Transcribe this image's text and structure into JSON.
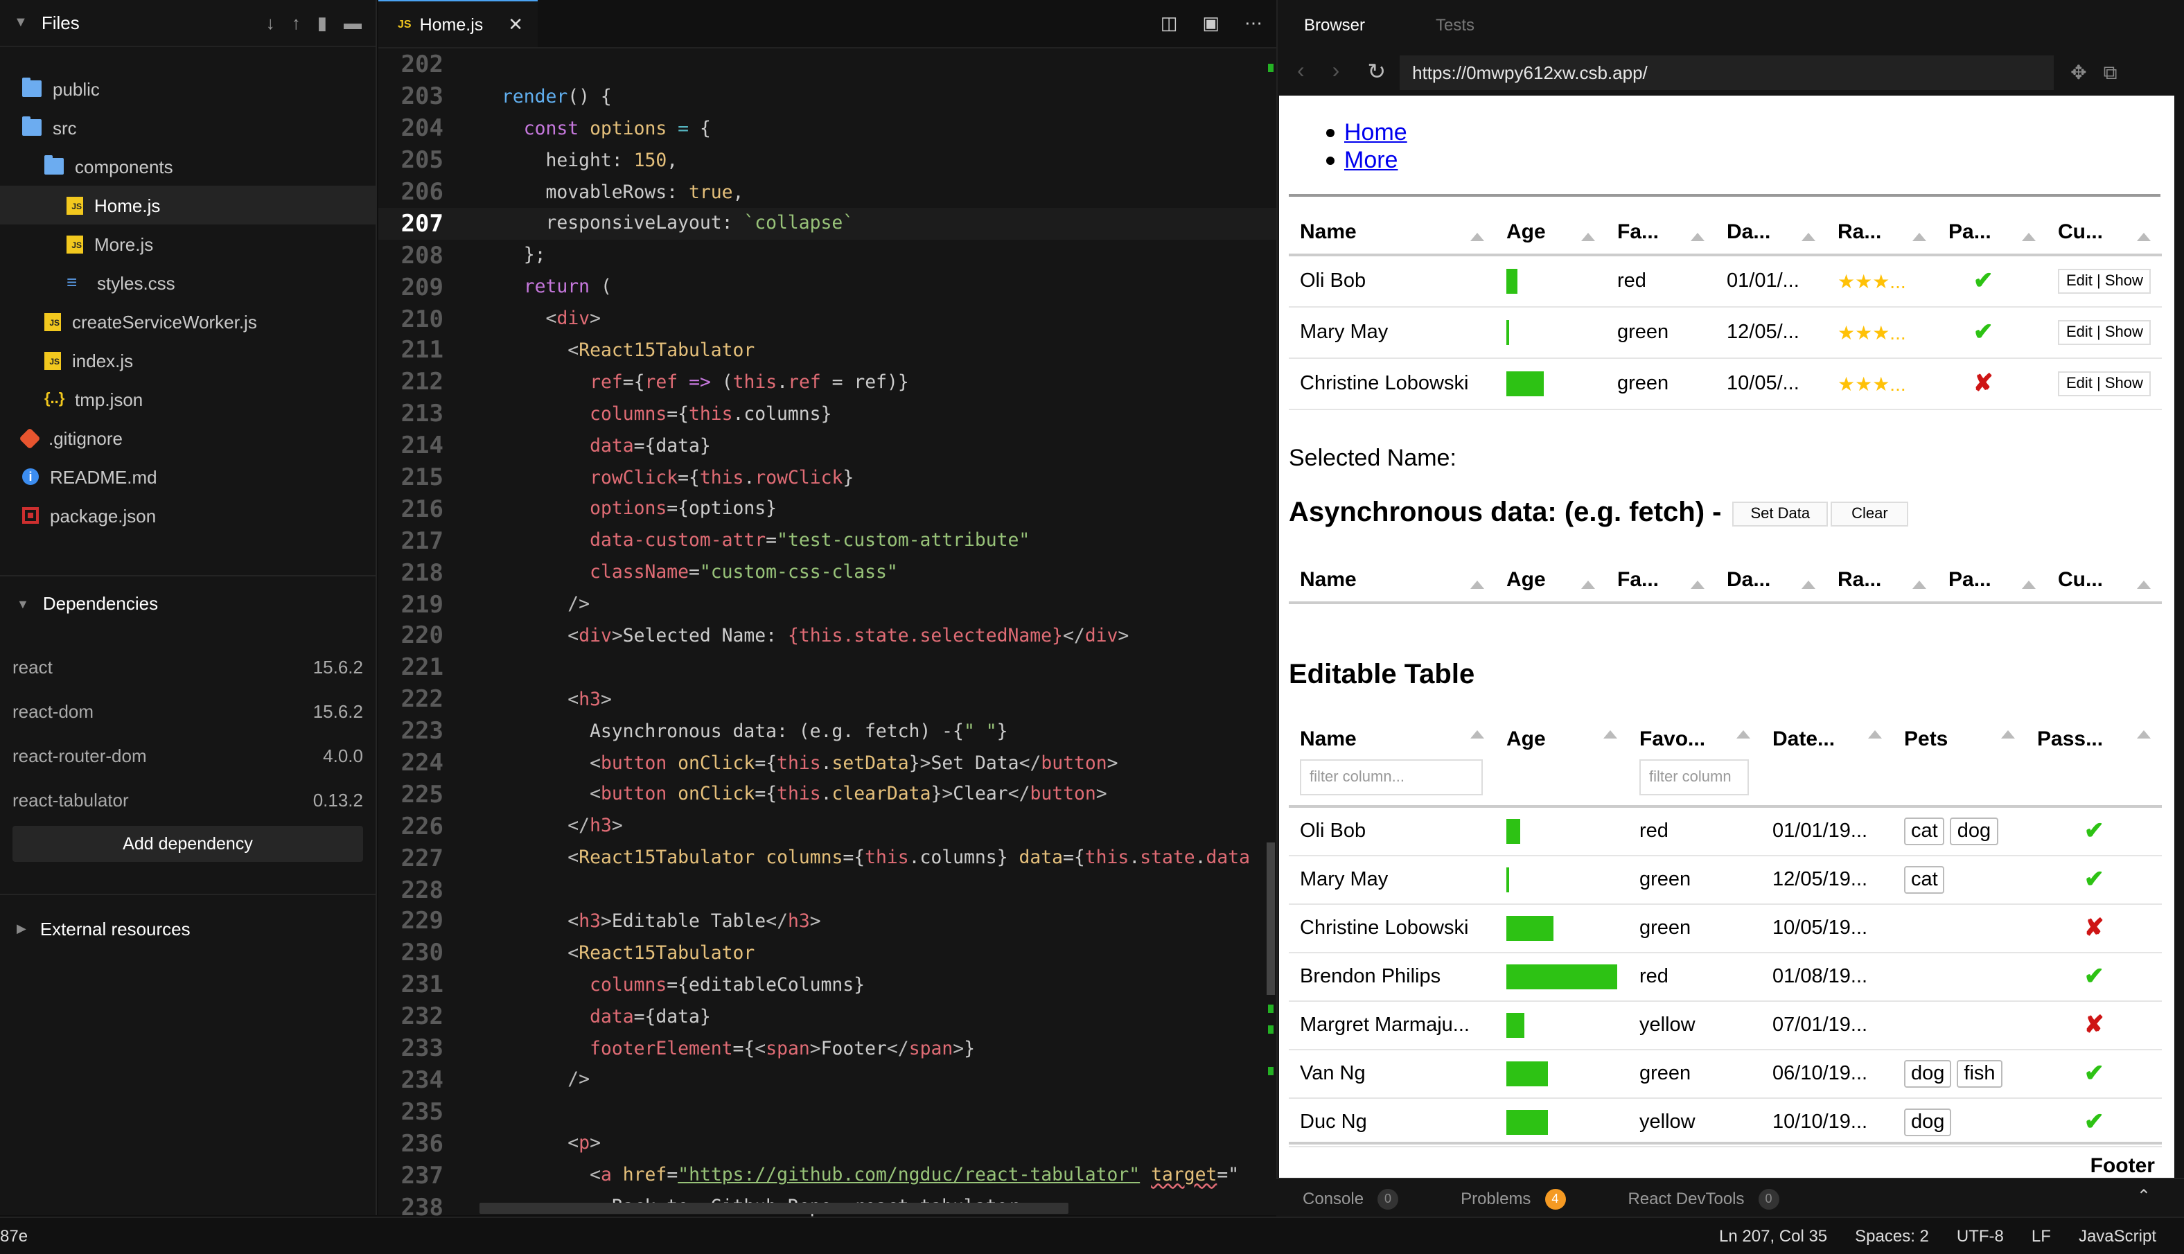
{
  "sidebar": {
    "title": "Files",
    "files": [
      {
        "name": "public",
        "icon": "folder-icon",
        "indent": 0
      },
      {
        "name": "src",
        "icon": "folder-icon",
        "indent": 0
      },
      {
        "name": "components",
        "icon": "folder-icon",
        "indent": 1
      },
      {
        "name": "Home.js",
        "icon": "js-file-icon",
        "indent": 2,
        "selected": true
      },
      {
        "name": "More.js",
        "icon": "js-file-icon",
        "indent": 2
      },
      {
        "name": "styles.css",
        "icon": "css-file-icon",
        "indent": 2
      },
      {
        "name": "createServiceWorker.js",
        "icon": "js-file-icon",
        "indent": 1
      },
      {
        "name": "index.js",
        "icon": "js-file-icon",
        "indent": 1
      },
      {
        "name": "tmp.json",
        "icon": "json-file-icon",
        "indent": 1
      },
      {
        "name": ".gitignore",
        "icon": "git-icon",
        "indent": 0
      },
      {
        "name": "README.md",
        "icon": "info-icon",
        "indent": 0
      },
      {
        "name": "package.json",
        "icon": "package-icon",
        "indent": 0
      }
    ],
    "dependencies_title": "Dependencies",
    "dependencies": [
      {
        "name": "react",
        "version": "15.6.2"
      },
      {
        "name": "react-dom",
        "version": "15.6.2"
      },
      {
        "name": "react-router-dom",
        "version": "4.0.0"
      },
      {
        "name": "react-tabulator",
        "version": "0.13.2"
      }
    ],
    "add_dependency": "Add dependency",
    "external_resources": "External resources"
  },
  "editor": {
    "tab": "Home.js",
    "tab_badge": "JS",
    "current_line": 207
  },
  "browser": {
    "tabs": [
      "Browser",
      "Tests"
    ],
    "url": "https://0mwpy612xw.csb.app/",
    "links": [
      "Home",
      "More"
    ],
    "table1": {
      "headers": [
        "Name",
        "Age",
        "Fa...",
        "Da...",
        "Ra...",
        "Pa...",
        "Cu..."
      ],
      "rows": [
        {
          "name": "Oli Bob",
          "age": 0.12,
          "color": "red",
          "date": "01/01/...",
          "rating": "★★★...",
          "pass": true,
          "actions": "Edit | Show"
        },
        {
          "name": "Mary May",
          "age": 0.01,
          "color": "green",
          "date": "12/05/...",
          "rating": "★★★...",
          "pass": true,
          "actions": "Edit | Show"
        },
        {
          "name": "Christine Lobowski",
          "age": 0.42,
          "color": "green",
          "date": "10/05/...",
          "rating": "★★★...",
          "pass": false,
          "actions": "Edit | Show"
        }
      ]
    },
    "selected_name": "Selected Name:",
    "async_title": "Asynchronous data: (e.g. fetch) -",
    "set_data": "Set Data",
    "clear": "Clear",
    "table2_headers": [
      "Name",
      "Age",
      "Fa...",
      "Da...",
      "Ra...",
      "Pa...",
      "Cu..."
    ],
    "editable_title": "Editable Table",
    "table3": {
      "headers": [
        "Name",
        "Age",
        "Favo...",
        "Date...",
        "Pets",
        "Pass..."
      ],
      "filter_name": "filter column...",
      "filter_fav": "filter column",
      "rows": [
        {
          "name": "Oli Bob",
          "age": 0.12,
          "color": "red",
          "date": "01/01/19...",
          "pets": [
            "cat",
            "dog"
          ],
          "pass": true
        },
        {
          "name": "Mary May",
          "age": 0.01,
          "color": "green",
          "date": "12/05/19...",
          "pets": [
            "cat"
          ],
          "pass": true
        },
        {
          "name": "Christine Lobowski",
          "age": 0.42,
          "color": "green",
          "date": "10/05/19...",
          "pets": [],
          "pass": false
        },
        {
          "name": "Brendon Philips",
          "age": 1.0,
          "color": "red",
          "date": "01/08/19...",
          "pets": [],
          "pass": true
        },
        {
          "name": "Margret Marmaju...",
          "age": 0.16,
          "color": "yellow",
          "date": "07/01/19...",
          "pets": [],
          "pass": false
        },
        {
          "name": "Van Ng",
          "age": 0.37,
          "color": "green",
          "date": "06/10/19...",
          "pets": [
            "dog",
            "fish"
          ],
          "pass": true
        },
        {
          "name": "Duc Ng",
          "age": 0.37,
          "color": "yellow",
          "date": "10/10/19...",
          "pets": [
            "dog"
          ],
          "pass": true
        }
      ],
      "footer": "Footer"
    }
  },
  "bottom_panel": [
    {
      "label": "Console",
      "count": "0"
    },
    {
      "label": "Problems",
      "count": "4"
    },
    {
      "label": "React DevTools",
      "count": "0"
    }
  ],
  "status": {
    "left": "87e",
    "position": "Ln 207, Col 35",
    "spaces": "Spaces: 2",
    "encoding": "UTF-8",
    "eol": "LF",
    "language": "JavaScript"
  },
  "colors": {
    "accent": "#4aa3f3",
    "bar": "#2dc214",
    "check": "#2dc214",
    "cross": "#ce1515",
    "star": "#ffc107"
  }
}
